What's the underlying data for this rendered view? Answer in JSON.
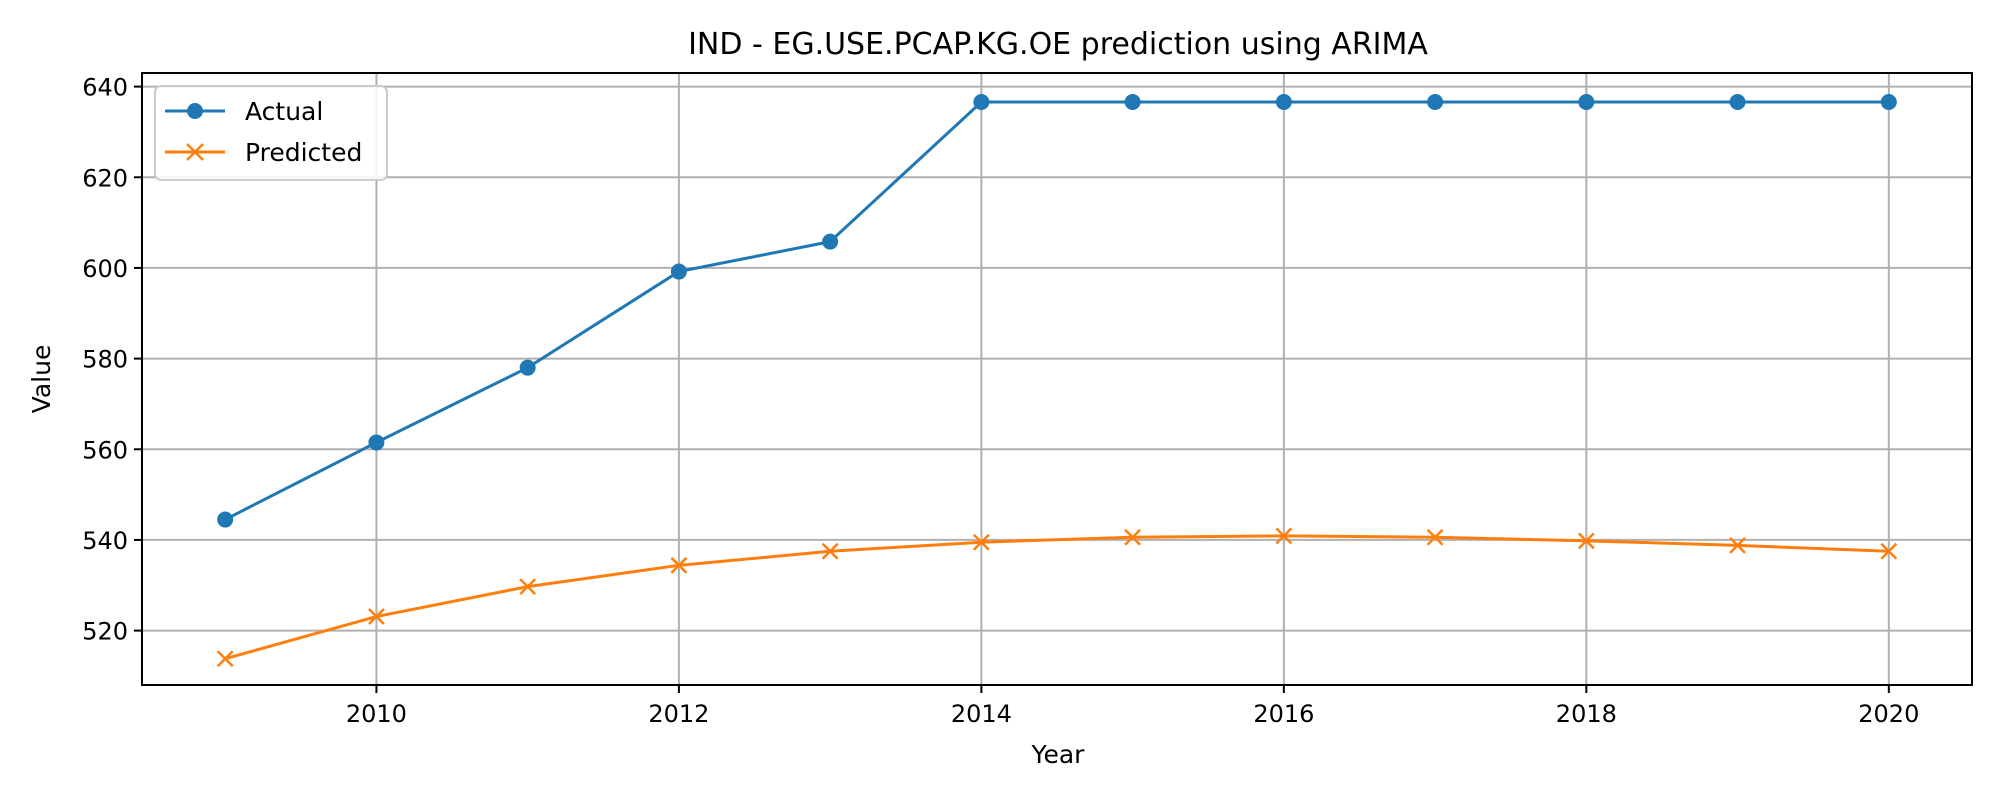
{
  "chart_data": {
    "type": "line",
    "title": "IND - EG.USE.PCAP.KG.OE prediction using ARIMA",
    "xlabel": "Year",
    "ylabel": "Value",
    "x": [
      2009,
      2010,
      2011,
      2012,
      2013,
      2014,
      2015,
      2016,
      2017,
      2018,
      2019,
      2020
    ],
    "xlim": [
      2008.45,
      2020.55
    ],
    "ylim": [
      508,
      643
    ],
    "x_ticks": [
      2010,
      2012,
      2014,
      2016,
      2018,
      2020
    ],
    "y_ticks": [
      520,
      540,
      560,
      580,
      600,
      620,
      640
    ],
    "grid": true,
    "legend_position": "upper left",
    "series": [
      {
        "name": "Actual",
        "color": "#1f77b4",
        "marker": "circle",
        "values": [
          544.5,
          561.5,
          578.0,
          599.2,
          605.8,
          636.6,
          636.6,
          636.6,
          636.6,
          636.6,
          636.6,
          636.6
        ]
      },
      {
        "name": "Predicted",
        "color": "#ff7f0e",
        "marker": "x",
        "values": [
          513.8,
          523.1,
          529.7,
          534.4,
          537.5,
          539.5,
          540.6,
          540.9,
          540.6,
          539.8,
          538.8,
          537.5
        ]
      }
    ]
  }
}
